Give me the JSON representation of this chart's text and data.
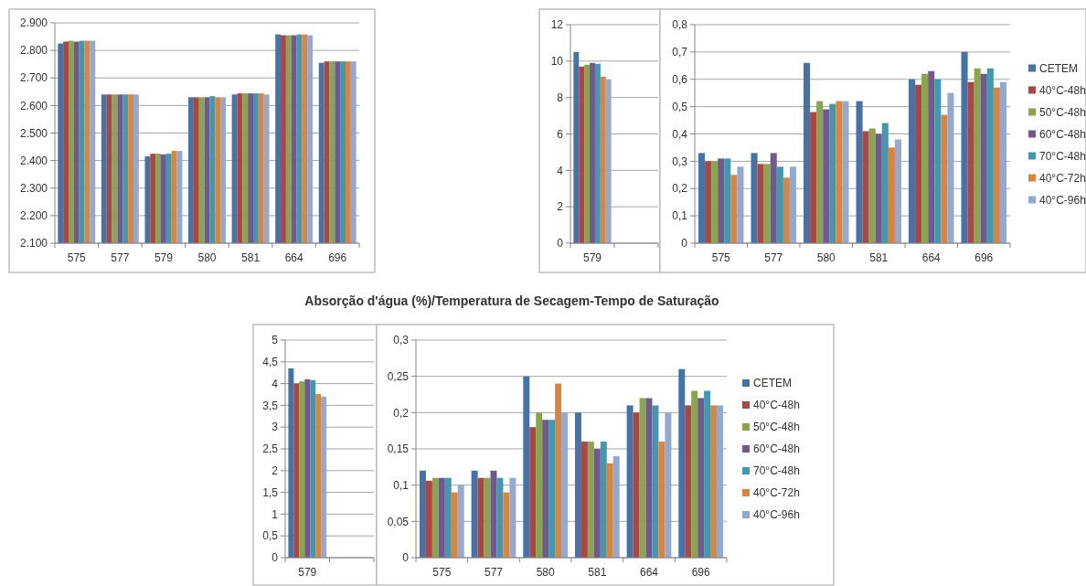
{
  "chart_data": [
    {
      "type": "bar",
      "categories": [
        "575",
        "577",
        "579",
        "580",
        "581",
        "664",
        "696"
      ],
      "ylim": [
        2100,
        2900
      ],
      "yticks": [
        {
          "value": 2100,
          "label": "2.100"
        },
        {
          "value": 2200,
          "label": "2.200"
        },
        {
          "value": 2300,
          "label": "2.300"
        },
        {
          "value": 2400,
          "label": "2.400"
        },
        {
          "value": 2500,
          "label": "2.500"
        },
        {
          "value": 2600,
          "label": "2.600"
        },
        {
          "value": 2700,
          "label": "2.700"
        },
        {
          "value": 2800,
          "label": "2.800"
        },
        {
          "value": 2900,
          "label": "2.900"
        }
      ],
      "grid": "y",
      "legend": false,
      "series": [
        {
          "color": "#4572a7",
          "values": [
            2825,
            2640,
            2415,
            2630,
            2640,
            2858,
            2755
          ]
        },
        {
          "color": "#aa4643",
          "values": [
            2832,
            2640,
            2425,
            2630,
            2644,
            2855,
            2760
          ]
        },
        {
          "color": "#89a54e",
          "values": [
            2835,
            2640,
            2425,
            2630,
            2644,
            2855,
            2760
          ]
        },
        {
          "color": "#71588f",
          "values": [
            2832,
            2640,
            2422,
            2630,
            2644,
            2855,
            2760
          ]
        },
        {
          "color": "#4198af",
          "values": [
            2835,
            2640,
            2425,
            2634,
            2644,
            2858,
            2760
          ]
        },
        {
          "color": "#db843d",
          "values": [
            2835,
            2640,
            2435,
            2630,
            2644,
            2858,
            2760
          ]
        },
        {
          "color": "#93a9cf",
          "values": [
            2835,
            2640,
            2435,
            2630,
            2640,
            2855,
            2760
          ]
        }
      ]
    },
    {
      "type": "bar",
      "categories": [
        "579",
        null
      ],
      "ylim": [
        0,
        12
      ],
      "yticks": [
        0,
        2,
        4,
        6,
        8,
        10,
        12
      ],
      "grid": "y",
      "legend": false,
      "series": [
        {
          "color": "#4572a7",
          "values": [
            10.5,
            null
          ]
        },
        {
          "color": "#aa4643",
          "values": [
            9.7,
            null
          ]
        },
        {
          "color": "#89a54e",
          "values": [
            9.8,
            null
          ]
        },
        {
          "color": "#71588f",
          "values": [
            9.9,
            null
          ]
        },
        {
          "color": "#4198af",
          "values": [
            9.85,
            null
          ]
        },
        {
          "color": "#db843d",
          "values": [
            9.15,
            null
          ]
        },
        {
          "color": "#93a9cf",
          "values": [
            9.0,
            null
          ]
        }
      ]
    },
    {
      "type": "bar",
      "categories": [
        "575",
        "577",
        "580",
        "581",
        "664",
        "696"
      ],
      "ylim": [
        0,
        0.8
      ],
      "yticks": [
        0,
        {
          "value": 0.1,
          "label": "0,1"
        },
        {
          "value": 0.2,
          "label": "0,2"
        },
        {
          "value": 0.3,
          "label": "0,3"
        },
        {
          "value": 0.4,
          "label": "0,4"
        },
        {
          "value": 0.5,
          "label": "0,5"
        },
        {
          "value": 0.6,
          "label": "0,6"
        },
        {
          "value": 0.7,
          "label": "0,7"
        },
        {
          "value": 0.8,
          "label": "0,8"
        }
      ],
      "grid": "y",
      "legend": "right",
      "series": [
        {
          "name": "CETEM",
          "color": "#4572a7",
          "values": [
            0.33,
            0.33,
            0.66,
            0.52,
            0.6,
            0.7
          ]
        },
        {
          "name": "40°C-48h",
          "color": "#aa4643",
          "values": [
            0.3,
            0.29,
            0.48,
            0.41,
            0.58,
            0.59
          ]
        },
        {
          "name": "50°C-48h",
          "color": "#89a54e",
          "values": [
            0.3,
            0.29,
            0.52,
            0.42,
            0.62,
            0.64
          ]
        },
        {
          "name": "60°C-48h",
          "color": "#71588f",
          "values": [
            0.31,
            0.33,
            0.49,
            0.4,
            0.63,
            0.62
          ]
        },
        {
          "name": "70°C-48h",
          "color": "#4198af",
          "values": [
            0.31,
            0.28,
            0.51,
            0.44,
            0.6,
            0.64
          ]
        },
        {
          "name": "40°C-72h",
          "color": "#db843d",
          "values": [
            0.25,
            0.24,
            0.52,
            0.35,
            0.47,
            0.57
          ]
        },
        {
          "name": "40°C-96h",
          "color": "#93a9cf",
          "values": [
            0.28,
            0.28,
            0.52,
            0.38,
            0.55,
            0.59
          ]
        }
      ]
    },
    {
      "type": "bar",
      "title": "Absorção d'água (%)/Temperatura de Secagem-Tempo de Saturação",
      "categories": [
        "579",
        null
      ],
      "ylim": [
        0,
        5
      ],
      "yticks": [
        0,
        {
          "value": 0.5,
          "label": "0,5"
        },
        1,
        {
          "value": 1.5,
          "label": "1,5"
        },
        2,
        {
          "value": 2.5,
          "label": "2,5"
        },
        3,
        {
          "value": 3.5,
          "label": "3,5"
        },
        4,
        {
          "value": 4.5,
          "label": "4,5"
        },
        5
      ],
      "grid": "y",
      "legend": false,
      "series": [
        {
          "color": "#4572a7",
          "values": [
            4.35,
            null
          ]
        },
        {
          "color": "#aa4643",
          "values": [
            4.0,
            null
          ]
        },
        {
          "color": "#89a54e",
          "values": [
            4.05,
            null
          ]
        },
        {
          "color": "#71588f",
          "values": [
            4.1,
            null
          ]
        },
        {
          "color": "#4198af",
          "values": [
            4.08,
            null
          ]
        },
        {
          "color": "#db843d",
          "values": [
            3.76,
            null
          ]
        },
        {
          "color": "#93a9cf",
          "values": [
            3.7,
            null
          ]
        }
      ]
    },
    {
      "type": "bar",
      "categories": [
        "575",
        "577",
        "580",
        "581",
        "664",
        "696"
      ],
      "ylim": [
        0,
        0.3
      ],
      "yticks": [
        0,
        {
          "value": 0.05,
          "label": "0,05"
        },
        {
          "value": 0.1,
          "label": "0,1"
        },
        {
          "value": 0.15,
          "label": "0,15"
        },
        {
          "value": 0.2,
          "label": "0,2"
        },
        {
          "value": 0.25,
          "label": "0,25"
        },
        {
          "value": 0.3,
          "label": "0,3"
        }
      ],
      "grid": "y",
      "legend": "right",
      "series": [
        {
          "name": "CETEM",
          "color": "#4572a7",
          "values": [
            0.12,
            0.12,
            0.25,
            0.2,
            0.21,
            0.26
          ]
        },
        {
          "name": "40°C-48h",
          "color": "#aa4643",
          "values": [
            0.106,
            0.11,
            0.18,
            0.16,
            0.2,
            0.21
          ]
        },
        {
          "name": "50°C-48h",
          "color": "#89a54e",
          "values": [
            0.11,
            0.11,
            0.2,
            0.16,
            0.22,
            0.23
          ]
        },
        {
          "name": "60°C-48h",
          "color": "#71588f",
          "values": [
            0.11,
            0.12,
            0.19,
            0.15,
            0.22,
            0.22
          ]
        },
        {
          "name": "70°C-48h",
          "color": "#4198af",
          "values": [
            0.11,
            0.11,
            0.19,
            0.16,
            0.21,
            0.23
          ]
        },
        {
          "name": "40°C-72h",
          "color": "#db843d",
          "values": [
            0.09,
            0.09,
            0.24,
            0.13,
            0.16,
            0.21
          ]
        },
        {
          "name": "40°C-96h",
          "color": "#93a9cf",
          "values": [
            0.1,
            0.11,
            0.2,
            0.14,
            0.2,
            0.21
          ]
        }
      ]
    }
  ]
}
